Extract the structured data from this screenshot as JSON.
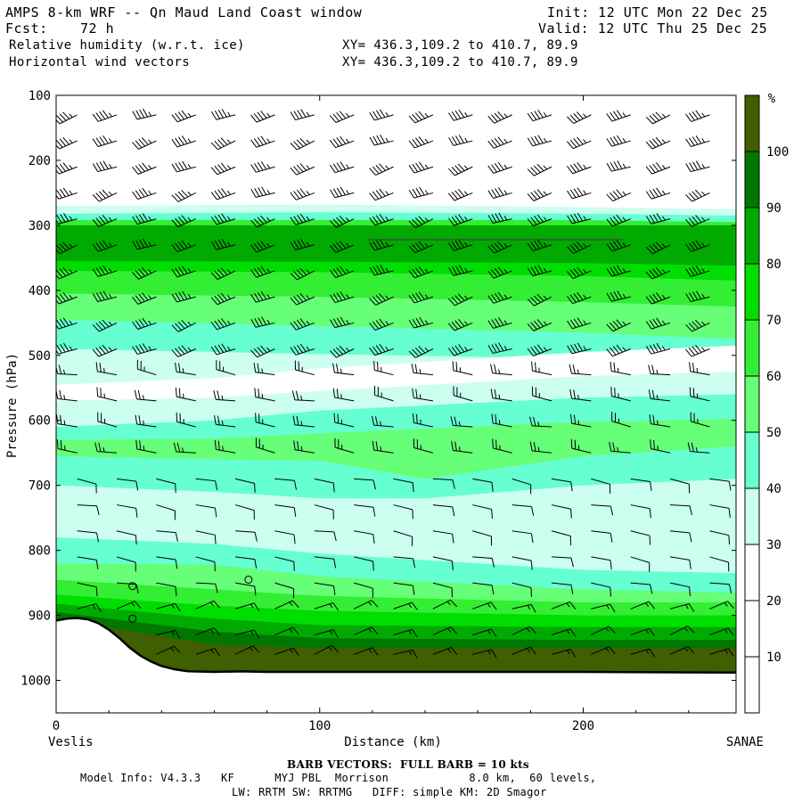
{
  "header": {
    "title": "AMPS 8-km WRF -- Qn Maud Land Coast window",
    "init": "Init: 12 UTC Mon 22 Dec 25",
    "fcst_label": "Fcst:",
    "fcst_value": "72 h",
    "valid": "Valid: 12 UTC Thu 25 Dec 25",
    "field1": "Relative humidity (w.r.t. ice)",
    "field2": "Horizontal wind vectors",
    "xy1": "XY= 436.3,109.2 to 410.7, 89.9",
    "xy2": "XY= 436.3,109.2 to 410.7, 89.9"
  },
  "chart_data": {
    "type": "cross-section-contour",
    "ylabel": "Pressure (hPa)",
    "xlabel": "Distance (km)",
    "x_left_label": "Veslis",
    "x_right_label": "SANAE",
    "xlim": [
      0,
      258
    ],
    "ylim": [
      100,
      1050
    ],
    "y_scale": "linear",
    "y_inverted": true,
    "x_ticks": [
      0,
      100,
      200
    ],
    "y_ticks": [
      100,
      200,
      300,
      400,
      500,
      600,
      700,
      800,
      900,
      1000
    ],
    "colorbar": {
      "unit": "%",
      "levels": [
        10,
        20,
        30,
        40,
        50,
        60,
        70,
        80,
        90,
        100
      ],
      "colors": [
        "#ffffff",
        "#ffffff",
        "#ffffff",
        "#ccfff0",
        "#66ffd1",
        "#66ff77",
        "#33ee33",
        "#00dd00",
        "#00aa00",
        "#007700",
        "#3f5f00"
      ]
    },
    "terrain": [
      [
        0,
        908
      ],
      [
        4,
        905
      ],
      [
        8,
        904
      ],
      [
        12,
        906
      ],
      [
        16,
        912
      ],
      [
        20,
        922
      ],
      [
        24,
        935
      ],
      [
        28,
        950
      ],
      [
        32,
        962
      ],
      [
        36,
        971
      ],
      [
        40,
        978
      ],
      [
        45,
        983
      ],
      [
        50,
        986
      ],
      [
        60,
        987
      ],
      [
        70,
        986
      ],
      [
        80,
        987
      ],
      [
        100,
        987
      ],
      [
        150,
        987
      ],
      [
        200,
        987
      ],
      [
        258,
        988
      ]
    ],
    "rh_bands": [
      {
        "level": 10,
        "top": [
          [
            0,
            100
          ],
          [
            258,
            100
          ]
        ]
      },
      {
        "level": 20,
        "top": [
          [
            0,
            260
          ],
          [
            100,
            259
          ],
          [
            200,
            262
          ],
          [
            258,
            265
          ]
        ]
      },
      {
        "level": 30,
        "top": [
          [
            0,
            270
          ],
          [
            100,
            268
          ],
          [
            200,
            272
          ],
          [
            258,
            275
          ]
        ]
      },
      {
        "level": 40,
        "top": [
          [
            0,
            282
          ],
          [
            100,
            280
          ],
          [
            200,
            282
          ],
          [
            258,
            285
          ]
        ]
      },
      {
        "level": 60,
        "top": [
          [
            0,
            292
          ],
          [
            100,
            292
          ],
          [
            200,
            292
          ],
          [
            258,
            295
          ]
        ]
      },
      {
        "level": 80,
        "top": [
          [
            0,
            300
          ],
          [
            100,
            300
          ],
          [
            200,
            300
          ],
          [
            258,
            300
          ]
        ]
      },
      {
        "level": 70,
        "top": [
          [
            0,
            355
          ],
          [
            100,
            356
          ],
          [
            200,
            358
          ],
          [
            258,
            362
          ]
        ]
      },
      {
        "level": 60,
        "top": [
          [
            0,
            370
          ],
          [
            100,
            372
          ],
          [
            200,
            378
          ],
          [
            258,
            385
          ]
        ]
      },
      {
        "level": 50,
        "top": [
          [
            0,
            405
          ],
          [
            100,
            410
          ],
          [
            200,
            418
          ],
          [
            258,
            425
          ]
        ]
      },
      {
        "level": 40,
        "top": [
          [
            0,
            445
          ],
          [
            100,
            455
          ],
          [
            200,
            465
          ],
          [
            258,
            475
          ]
        ]
      },
      {
        "level": 30,
        "top": [
          [
            0,
            490
          ],
          [
            100,
            498
          ],
          [
            200,
            505
          ],
          [
            258,
            515
          ]
        ]
      },
      {
        "level": 20,
        "top": [
          [
            0,
            545
          ],
          [
            60,
            535
          ],
          [
            100,
            520
          ],
          [
            200,
            495
          ],
          [
            258,
            485
          ]
        ]
      },
      {
        "level": 30,
        "top": [
          [
            0,
            570
          ],
          [
            60,
            565
          ],
          [
            100,
            555
          ],
          [
            200,
            532
          ],
          [
            258,
            525
          ]
        ]
      },
      {
        "level": 40,
        "top": [
          [
            0,
            610
          ],
          [
            60,
            600
          ],
          [
            100,
            585
          ],
          [
            200,
            565
          ],
          [
            258,
            560
          ]
        ]
      },
      {
        "level": 50,
        "top": [
          [
            0,
            630
          ],
          [
            60,
            628
          ],
          [
            100,
            620
          ],
          [
            200,
            602
          ],
          [
            258,
            598
          ]
        ]
      },
      {
        "level": 40,
        "top": [
          [
            0,
            655
          ],
          [
            60,
            660
          ],
          [
            100,
            662
          ],
          [
            140,
            690
          ],
          [
            200,
            655
          ],
          [
            258,
            640
          ]
        ]
      },
      {
        "level": 30,
        "top": [
          [
            0,
            700
          ],
          [
            60,
            710
          ],
          [
            100,
            720
          ],
          [
            140,
            720
          ],
          [
            200,
            700
          ],
          [
            258,
            690
          ]
        ]
      },
      {
        "level": 40,
        "top": [
          [
            0,
            780
          ],
          [
            60,
            790
          ],
          [
            100,
            805
          ],
          [
            200,
            830
          ],
          [
            258,
            835
          ]
        ]
      },
      {
        "level": 50,
        "top": [
          [
            0,
            820
          ],
          [
            60,
            822
          ],
          [
            100,
            840
          ],
          [
            200,
            860
          ],
          [
            258,
            865
          ]
        ]
      },
      {
        "level": 60,
        "top": [
          [
            0,
            845
          ],
          [
            60,
            860
          ],
          [
            100,
            870
          ],
          [
            200,
            880
          ],
          [
            258,
            880
          ]
        ]
      },
      {
        "level": 70,
        "top": [
          [
            0,
            868
          ],
          [
            60,
            885
          ],
          [
            100,
            893
          ],
          [
            200,
            900
          ],
          [
            258,
            900
          ]
        ]
      },
      {
        "level": 80,
        "top": [
          [
            0,
            882
          ],
          [
            60,
            905
          ],
          [
            100,
            915
          ],
          [
            200,
            918
          ],
          [
            258,
            918
          ]
        ]
      },
      {
        "level": 90,
        "top": [
          [
            0,
            895
          ],
          [
            60,
            925
          ],
          [
            100,
            935
          ],
          [
            200,
            938
          ],
          [
            258,
            938
          ]
        ]
      },
      {
        "level": 100,
        "top": [
          [
            0,
            905
          ],
          [
            60,
            945
          ],
          [
            100,
            950
          ],
          [
            200,
            950
          ],
          [
            258,
            950
          ]
        ]
      }
    ],
    "barb_columns_km": [
      8,
      23,
      38,
      53,
      68,
      83,
      98,
      113,
      128,
      143,
      158,
      173,
      188,
      203,
      218,
      233,
      248
    ],
    "barb_levels_hpa": [
      130,
      170,
      210,
      250,
      290,
      330,
      370,
      410,
      450,
      490,
      530,
      570,
      610,
      650,
      690,
      730,
      770,
      810,
      850,
      890,
      930,
      960
    ],
    "barb_regimes": [
      {
        "name": "upper",
        "pmax": 520,
        "dir_deg": 250,
        "speed_kt": 45
      },
      {
        "name": "mid",
        "pmax": 650,
        "dir_deg": 280,
        "speed_kt": 25
      },
      {
        "name": "lower",
        "pmax": 860,
        "dir_deg": 100,
        "speed_kt": 12
      },
      {
        "name": "surface",
        "pmax": 1000,
        "dir_deg": 70,
        "speed_kt": 18
      }
    ],
    "calm_markers": [
      [
        29,
        855
      ],
      [
        73,
        845
      ],
      [
        29,
        905
      ]
    ]
  },
  "footer": {
    "barb_note": "BARB VECTORS:  FULL BARB = 10 kts",
    "model_line": "Model Info: V4.3.3   KF      MYJ PBL  Morrison            8.0 km,  60 levels,",
    "phys_line": "LW: RRTM SW: RRTMG   DIFF: simple KM: 2D Smagor"
  }
}
